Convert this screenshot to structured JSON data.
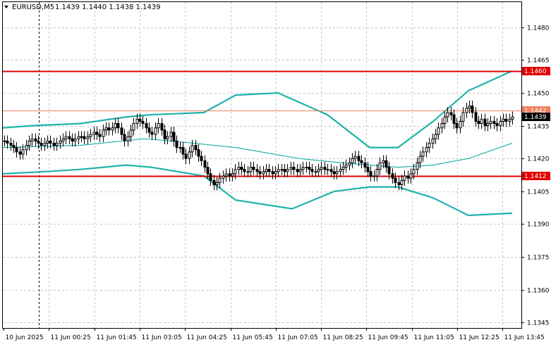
{
  "header": {
    "symbol": "EURUSD,M5",
    "ohlc": "1.1439 1.1440 1.1438 1.1439",
    "menu_icon": "triangle-down-icon"
  },
  "colors": {
    "bollinger": "#20b2aa",
    "level": "#e00000",
    "price_line": "#f08060",
    "current_badge": "#000000",
    "candle": "#000000",
    "grid": "#c8c8c8"
  },
  "chart_data": {
    "type": "candlestick",
    "title": "EURUSD,M5",
    "ylim": [
      1.13425,
      1.14915
    ],
    "y_ticks": [
      "1.1480",
      "1.1465",
      "1.1450",
      "1.1435",
      "1.1420",
      "1.1405",
      "1.1390",
      "1.1375",
      "1.1360",
      "1.1345"
    ],
    "x_ticks": [
      "10 Jun 2025",
      "11 Jun 00:25",
      "11 Jun 01:45",
      "11 Jun 03:05",
      "11 Jun 04:25",
      "11 Jun 05:45",
      "11 Jun 07:05",
      "11 Jun 08:25",
      "11 Jun 09:45",
      "11 Jun 11:05",
      "11 Jun 12:25",
      "11 Jun 13:45"
    ],
    "levels": [
      {
        "label": "1.1460",
        "value": 1.146,
        "kind": "level"
      },
      {
        "label": "1.1442",
        "value": 1.1442,
        "kind": "price"
      },
      {
        "label": "1.1412",
        "value": 1.1412,
        "kind": "level"
      }
    ],
    "current": {
      "label": "1.1439",
      "value": 1.1439
    },
    "closes": [
      1.1428,
      1.1427,
      1.1426,
      1.1425,
      1.1423,
      1.1422,
      1.1424,
      1.1426,
      1.1428,
      1.1429,
      1.1428,
      1.1427,
      1.1426,
      1.1427,
      1.1428,
      1.1427,
      1.1426,
      1.1427,
      1.1428,
      1.1429,
      1.143,
      1.1429,
      1.1428,
      1.1429,
      1.143,
      1.143,
      1.1429,
      1.143,
      1.1431,
      1.1432,
      1.1431,
      1.143,
      1.1433,
      1.1434,
      1.1433,
      1.1434,
      1.1436,
      1.1434,
      1.1431,
      1.1428,
      1.143,
      1.1433,
      1.1436,
      1.1438,
      1.1437,
      1.1436,
      1.1434,
      1.1432,
      1.1431,
      1.1434,
      1.1436,
      1.1433,
      1.1429,
      1.143,
      1.1432,
      1.1428,
      1.1425,
      1.1425,
      1.1422,
      1.142,
      1.1423,
      1.1426,
      1.1424,
      1.1421,
      1.1419,
      1.1416,
      1.1413,
      1.141,
      1.1408,
      1.1409,
      1.1411,
      1.1412,
      1.1413,
      1.1412,
      1.1413,
      1.1415,
      1.1416,
      1.1415,
      1.1414,
      1.1414,
      1.1416,
      1.1415,
      1.1414,
      1.1413,
      1.1414,
      1.1415,
      1.1414,
      1.1413,
      1.1414,
      1.1415,
      1.1415,
      1.1414,
      1.1415,
      1.1416,
      1.1415,
      1.1414,
      1.1415,
      1.1416,
      1.1416,
      1.1415,
      1.1414,
      1.1414,
      1.1415,
      1.1416,
      1.1415,
      1.1415,
      1.1414,
      1.1413,
      1.1414,
      1.1415,
      1.1416,
      1.1417,
      1.1418,
      1.142,
      1.1421,
      1.1419,
      1.1418,
      1.1416,
      1.1414,
      1.1412,
      1.1412,
      1.1415,
      1.1418,
      1.1419,
      1.1416,
      1.1413,
      1.1411,
      1.1409,
      1.1408,
      1.141,
      1.1412,
      1.1411,
      1.1413,
      1.1415,
      1.1418,
      1.1421,
      1.1423,
      1.1425,
      1.1427,
      1.1429,
      1.1431,
      1.1434,
      1.1436,
      1.1439,
      1.1441,
      1.144,
      1.1436,
      1.1434,
      1.1437,
      1.1441,
      1.1443,
      1.1444,
      1.1441,
      1.1437,
      1.1436,
      1.1438,
      1.1435,
      1.1436,
      1.1437,
      1.1436,
      1.1435,
      1.1437,
      1.1438,
      1.1437,
      1.1438,
      1.1439
    ],
    "bollinger": {
      "upper": [
        [
          0,
          1.1434
        ],
        [
          40,
          1.1435
        ],
        [
          110,
          1.1436
        ],
        [
          175,
          1.1439
        ],
        [
          210,
          1.144
        ],
        [
          285,
          1.1441
        ],
        [
          330,
          1.1449
        ],
        [
          390,
          1.145
        ],
        [
          460,
          1.144
        ],
        [
          520,
          1.1425
        ],
        [
          560,
          1.1425
        ],
        [
          610,
          1.1437
        ],
        [
          660,
          1.1451
        ],
        [
          722,
          1.146
        ]
      ],
      "middle": [
        [
          0,
          1.1425
        ],
        [
          110,
          1.1426
        ],
        [
          200,
          1.1429
        ],
        [
          240,
          1.1428
        ],
        [
          330,
          1.1425
        ],
        [
          420,
          1.142
        ],
        [
          480,
          1.1418
        ],
        [
          560,
          1.1416
        ],
        [
          610,
          1.1417
        ],
        [
          660,
          1.142
        ],
        [
          722,
          1.1427
        ]
      ],
      "lower": [
        [
          0,
          1.1413
        ],
        [
          60,
          1.1414
        ],
        [
          110,
          1.1415
        ],
        [
          175,
          1.1417
        ],
        [
          210,
          1.1416
        ],
        [
          285,
          1.1412
        ],
        [
          330,
          1.1401
        ],
        [
          410,
          1.1397
        ],
        [
          470,
          1.1405
        ],
        [
          520,
          1.1407
        ],
        [
          560,
          1.1407
        ],
        [
          610,
          1.1402
        ],
        [
          660,
          1.1394
        ],
        [
          722,
          1.1395
        ]
      ]
    }
  }
}
